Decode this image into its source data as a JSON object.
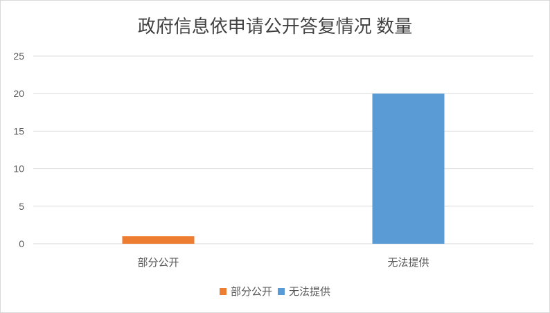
{
  "chart_data": {
    "type": "bar",
    "title": "政府信息依申请公开答复情况 数量",
    "categories": [
      "部分公开",
      "无法提供"
    ],
    "values": [
      1,
      20
    ],
    "colors": [
      "#ED7D31",
      "#5B9BD5"
    ],
    "ylim": [
      0,
      25
    ],
    "yticks": [
      0,
      5,
      10,
      15,
      20,
      25
    ],
    "grid": true,
    "legend": {
      "position": "bottom",
      "entries": [
        "部分公开",
        "无法提供"
      ]
    }
  }
}
